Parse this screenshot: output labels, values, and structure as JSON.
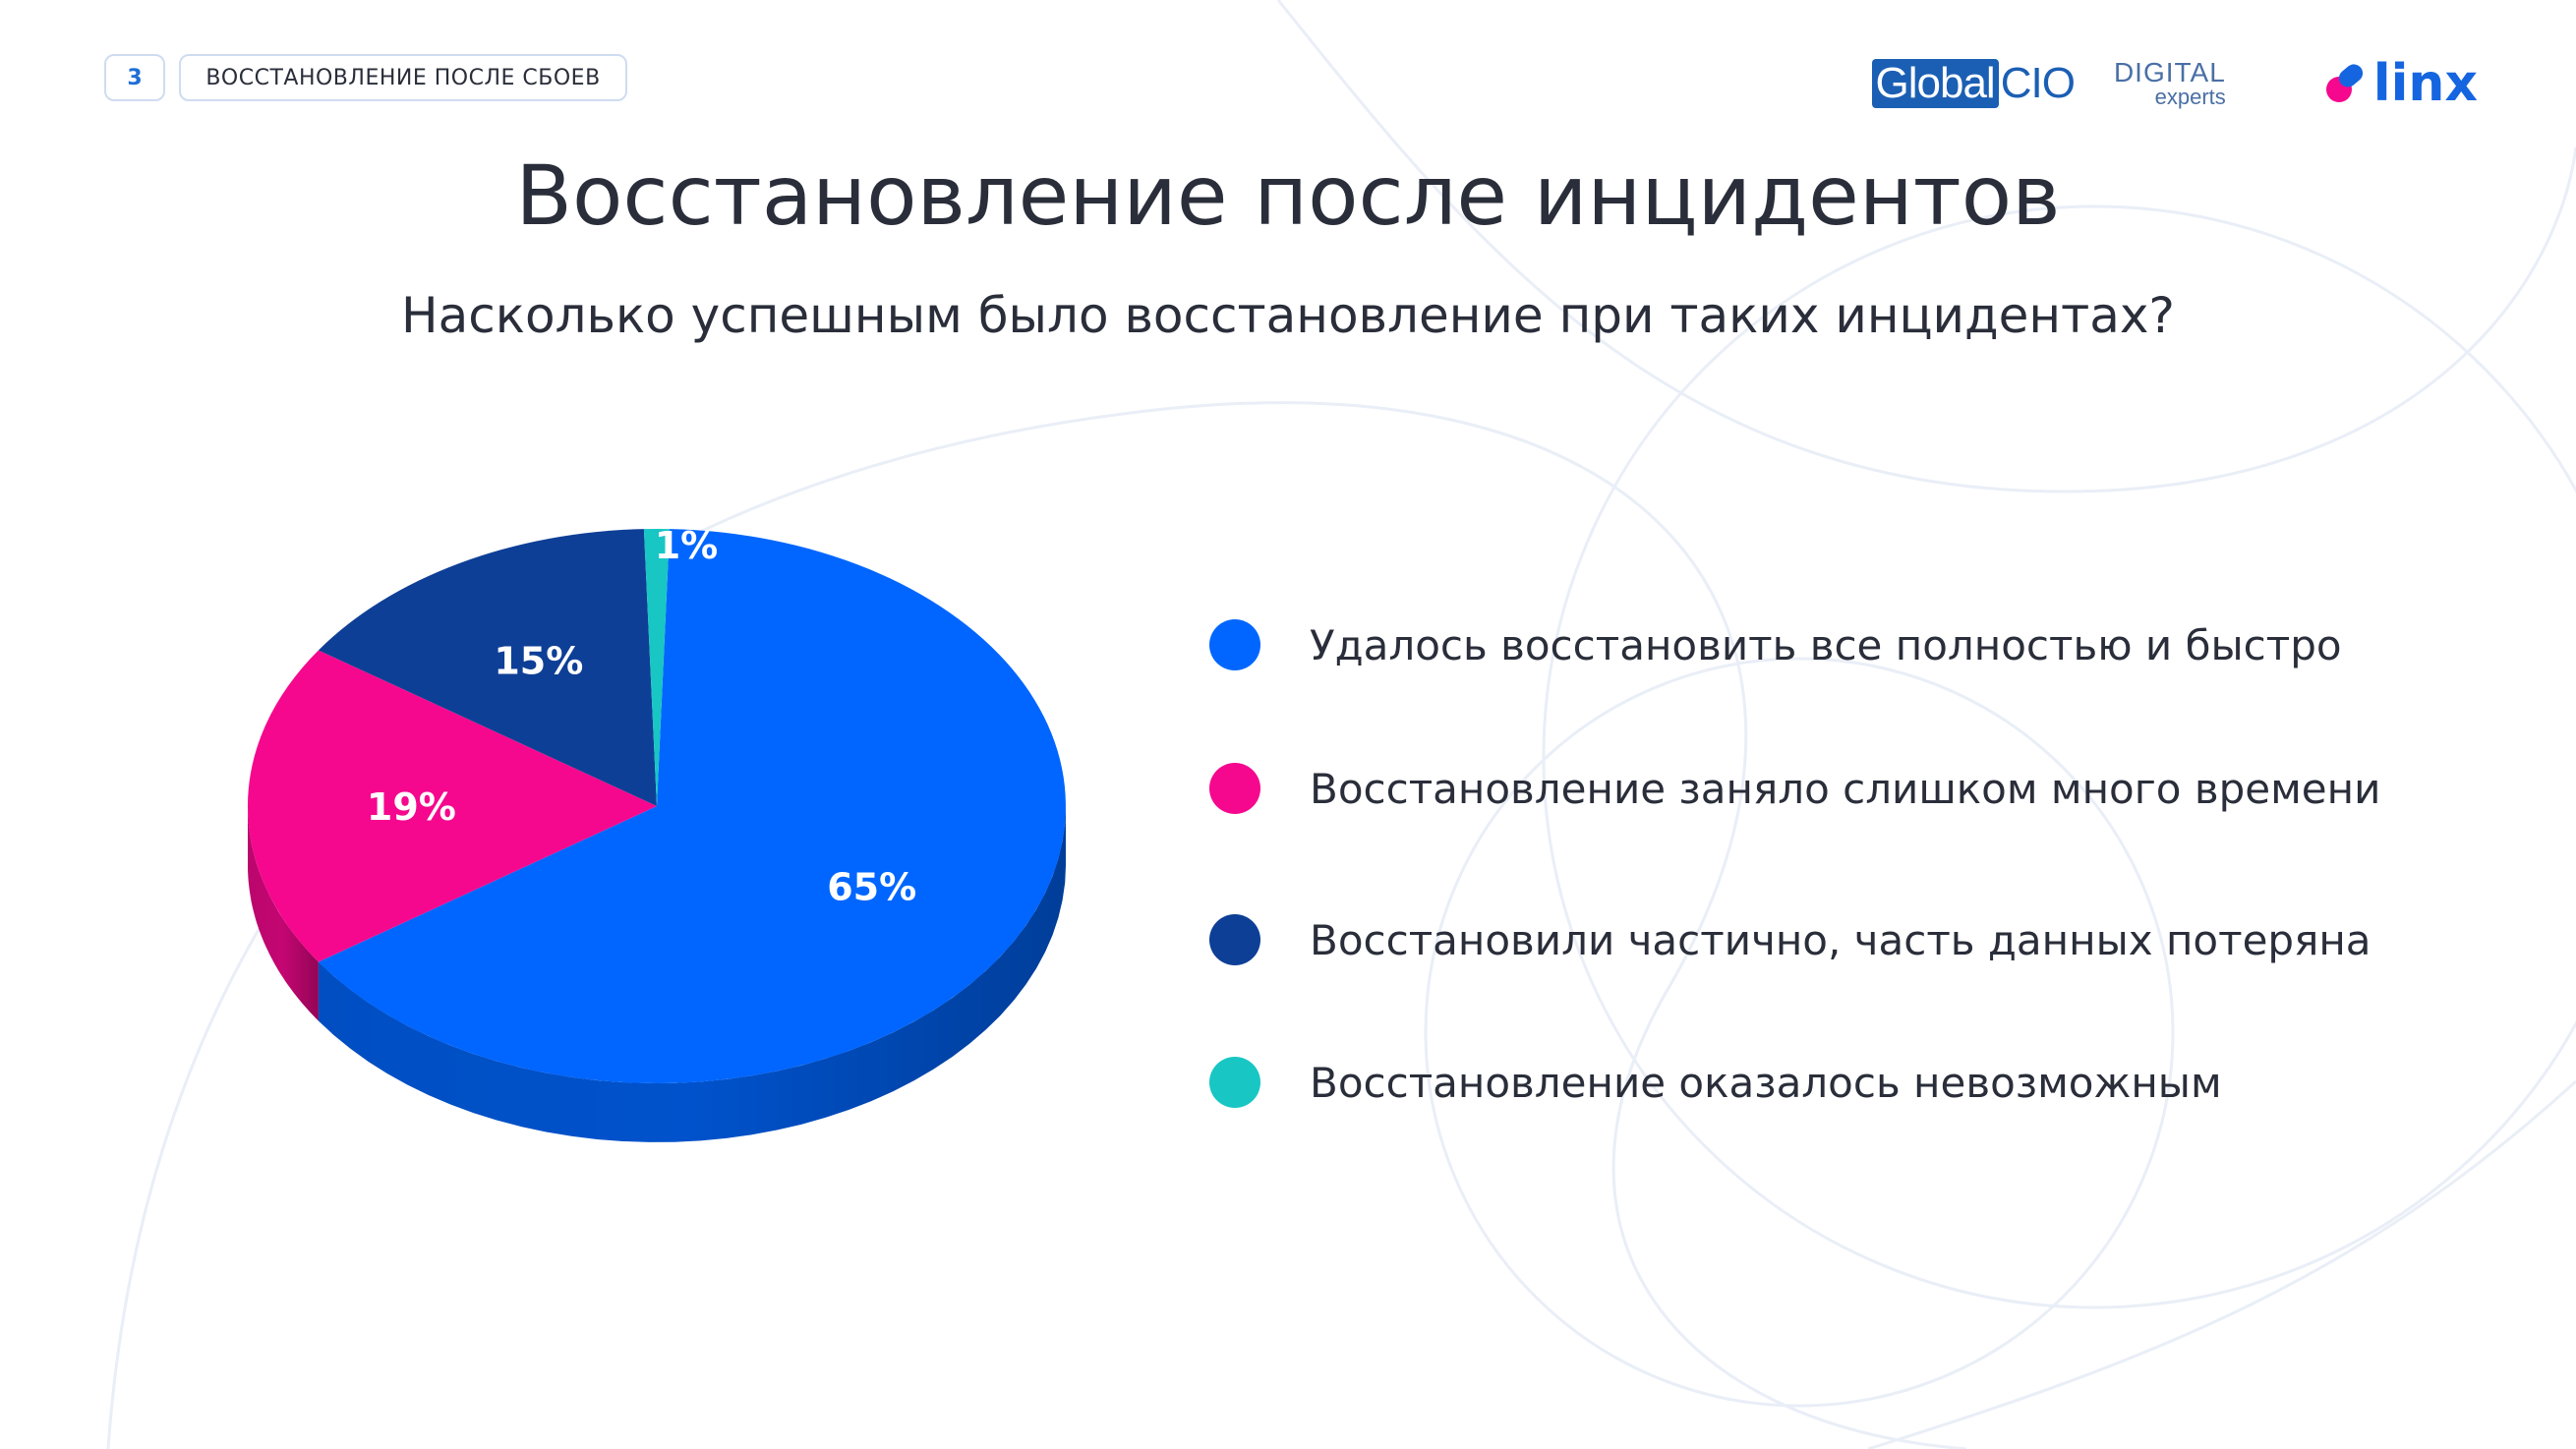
{
  "header": {
    "page_number": "3",
    "section_tag": "ВОССТАНОВЛЕНИЕ ПОСЛЕ СБОЕВ"
  },
  "logos": {
    "globalcio_a": "Global",
    "globalcio_b": "CIO",
    "digital_a": "DIGITAL",
    "digital_b": "experts",
    "linx": "linx"
  },
  "title": "Восстановление после инцидентов",
  "subtitle": "Насколько успешным было восстановление при таких инцидентах?",
  "colors": {
    "blue": "#0066ff",
    "pink": "#f5088e",
    "navy": "#0e3f96",
    "teal": "#18c6c4"
  },
  "chart_data": {
    "type": "pie",
    "title": "Насколько успешным было восстановление при таких инцидентах?",
    "slices": [
      {
        "label": "Удалось восстановить все полностью и быстро",
        "value": 65,
        "data_label": "65%",
        "color": "#0066ff"
      },
      {
        "label": "Восстановление заняло слишком много времени",
        "value": 19,
        "data_label": "19%",
        "color": "#f5088e"
      },
      {
        "label": "Восстановили частично, часть данных потеряна",
        "value": 15,
        "data_label": "15%",
        "color": "#0e3f96"
      },
      {
        "label": "Восстановление оказалось невозможным",
        "value": 1,
        "data_label": "1%",
        "color": "#18c6c4"
      }
    ],
    "legend_position": "right"
  }
}
